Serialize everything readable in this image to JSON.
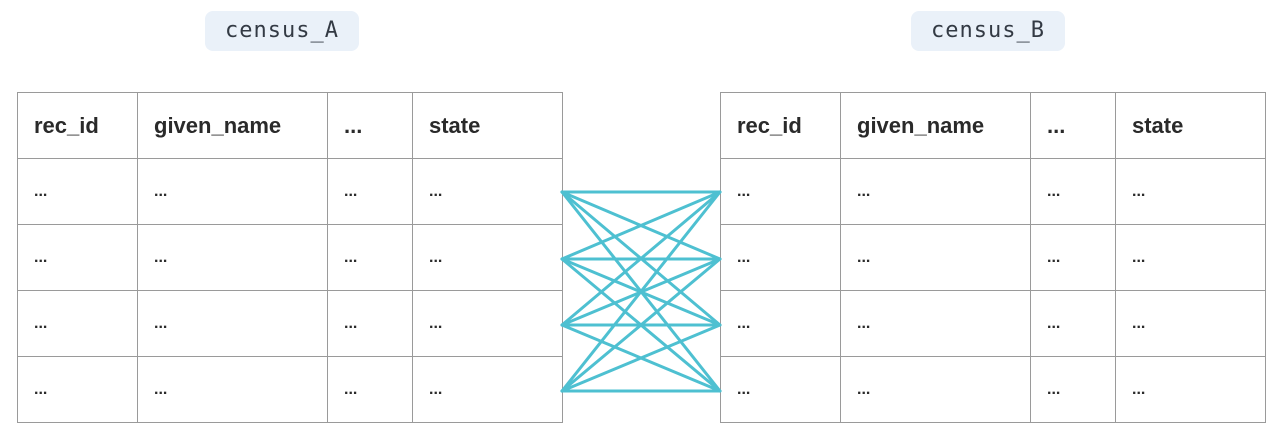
{
  "left_table": {
    "title": "census_A",
    "columns": [
      "rec_id",
      "given_name",
      "...",
      "state"
    ],
    "rows": [
      [
        "...",
        "...",
        "...",
        "..."
      ],
      [
        "...",
        "...",
        "...",
        "..."
      ],
      [
        "...",
        "...",
        "...",
        "..."
      ],
      [
        "...",
        "...",
        "...",
        "..."
      ]
    ]
  },
  "right_table": {
    "title": "census_B",
    "columns": [
      "rec_id",
      "given_name",
      "...",
      "state"
    ],
    "rows": [
      [
        "...",
        "...",
        "...",
        "..."
      ],
      [
        "...",
        "...",
        "...",
        "..."
      ],
      [
        "...",
        "...",
        "...",
        "..."
      ],
      [
        "...",
        "...",
        "...",
        "..."
      ]
    ]
  },
  "links": {
    "color": "#4ec0d1",
    "pairing": "every row of census_A to every row of census_B"
  }
}
